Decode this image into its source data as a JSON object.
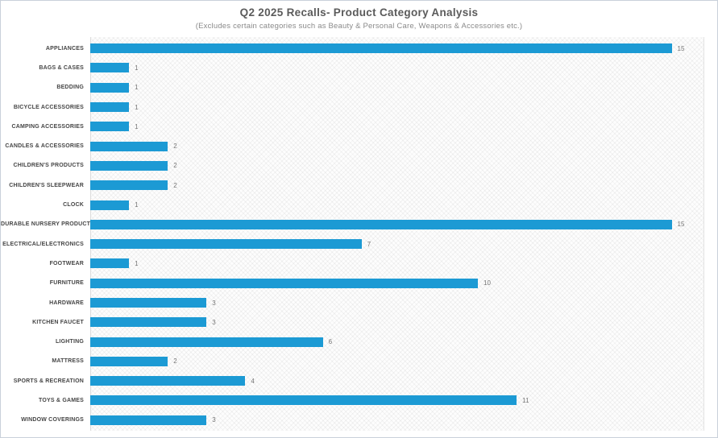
{
  "header": {
    "title": "Q2 2025 Recalls- Product Category Analysis",
    "subtitle": "(Excludes certain categories such as Beauty & Personal Care, Weapons & Accessories etc.)"
  },
  "chart_data": {
    "type": "bar",
    "orientation": "horizontal",
    "title": "Q2 2025 Recalls- Product Category Analysis",
    "subtitle": "(Excludes certain categories such as Beauty & Personal Care, Weapons & Accessories etc.)",
    "xlabel": "",
    "ylabel": "",
    "xlim": [
      0,
      16
    ],
    "grid": false,
    "legend": false,
    "value_labels": true,
    "bar_color": "#1C9AD4",
    "value_label_color": "#757575",
    "categories": [
      "APPLIANCES",
      "BAGS & CASES",
      "BEDDING",
      "BICYCLE ACCESSORIES",
      "CAMPING ACCESSORIES",
      "CANDLES & ACCESSORIES",
      "CHILDREN'S PRODUCTS",
      "CHILDREN'S SLEEPWEAR",
      "CLOCK",
      "DURABLE NURSERY PRODUCT",
      "ELECTRICAL/ELECTRONICS",
      "FOOTWEAR",
      "FURNITURE",
      "HARDWARE",
      "KITCHEN FAUCET",
      "LIGHTING",
      "MATTRESS",
      "SPORTS & RECREATION",
      "TOYS & GAMES",
      "WINDOW COVERINGS"
    ],
    "values": [
      15,
      1,
      1,
      1,
      1,
      2,
      2,
      2,
      1,
      15,
      7,
      1,
      10,
      3,
      3,
      6,
      2,
      4,
      11,
      3
    ]
  }
}
